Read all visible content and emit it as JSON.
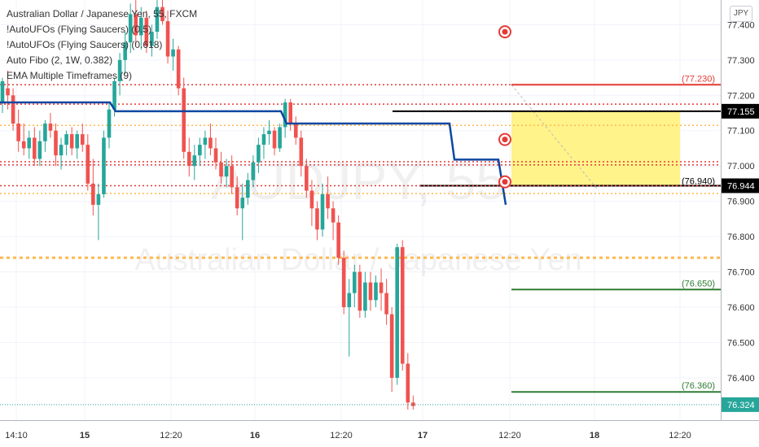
{
  "watermark": {
    "symbol": "AUDJPY, 55",
    "name": "Australian Dollar / Japanese Yen"
  },
  "legend": {
    "title": "Australian Dollar / Japanese Yen, 55, FXCM",
    "indicators": [
      "!AutoUFOs (Flying Saucers) (0.5)",
      "!AutoUFOs (Flying Saucers) (0.618)",
      "Auto Fibo (2, 1W, 0.382)",
      "EMA Multiple Timeframes (9)"
    ]
  },
  "currency_button": "JPY",
  "colors": {
    "up": "#26a69a",
    "down": "#ef5350",
    "ema": "#0d47a1",
    "dotted_red": "#e53935",
    "dotted_orange": "#ffb74d",
    "resistance_red": "#e53935",
    "target_green": "#2e7d32",
    "zone_yellow": "#fff176",
    "last_price": "#26a69a"
  },
  "chart_data": {
    "type": "candlestick",
    "symbol": "AUDJPY",
    "timeframe": "55",
    "source": "FXCM",
    "ylim": [
      76.28,
      77.47
    ],
    "y_ticks": [
      "77.400",
      "77.300",
      "77.200",
      "77.100",
      "77.000",
      "76.900",
      "76.800",
      "76.700",
      "76.600",
      "76.500",
      "76.400"
    ],
    "x_ticks": [
      "14:10",
      "15",
      "12:20",
      "16",
      "12:20",
      "17",
      "12:20",
      "18",
      "12:20"
    ],
    "price_labels": [
      {
        "text": "77.155",
        "value": 77.155,
        "style": "black"
      },
      {
        "text": "76.944",
        "value": 76.944,
        "style": "black"
      },
      {
        "text": "76.324",
        "value": 76.324,
        "style": "green"
      }
    ],
    "level_labels": [
      {
        "text": "(77.230)",
        "value": 77.23,
        "color": "red"
      },
      {
        "text": "(76.940)",
        "value": 76.94,
        "color": "black"
      },
      {
        "text": "(76.650)",
        "value": 76.65,
        "color": "green"
      },
      {
        "text": "(76.360)",
        "value": 76.36,
        "color": "green"
      }
    ],
    "horizontal_levels": [
      {
        "value": 77.23,
        "kind": "red-solid"
      },
      {
        "value": 77.155,
        "kind": "black-solid"
      },
      {
        "value": 76.944,
        "kind": "black-solid"
      },
      {
        "value": 76.65,
        "kind": "green-solid"
      },
      {
        "value": 76.36,
        "kind": "green-solid"
      },
      {
        "value": 77.23,
        "kind": "red-dotted"
      },
      {
        "value": 77.175,
        "kind": "red-dotted"
      },
      {
        "value": 77.012,
        "kind": "red-dotted"
      },
      {
        "value": 77.003,
        "kind": "red-dotted"
      },
      {
        "value": 76.944,
        "kind": "red-dotted"
      },
      {
        "value": 77.115,
        "kind": "orange-dotted"
      },
      {
        "value": 76.922,
        "kind": "orange-dotted"
      },
      {
        "value": 76.74,
        "kind": "orange-dotted"
      }
    ],
    "zone": {
      "from": 77.155,
      "to": 76.944
    },
    "markers": [
      77.38,
      77.075,
      76.955
    ],
    "candles": [
      [
        77.18,
        77.25,
        77.15,
        77.24
      ],
      [
        77.22,
        77.27,
        77.16,
        77.2
      ],
      [
        77.2,
        77.22,
        77.1,
        77.12
      ],
      [
        77.12,
        77.16,
        77.04,
        77.07
      ],
      [
        77.07,
        77.12,
        77.03,
        77.05
      ],
      [
        77.05,
        77.1,
        77.02,
        77.08
      ],
      [
        77.08,
        77.11,
        77.0,
        77.02
      ],
      [
        77.02,
        77.1,
        77.0,
        77.07
      ],
      [
        77.07,
        77.13,
        77.04,
        77.12
      ],
      [
        77.12,
        77.15,
        77.08,
        77.1
      ],
      [
        77.1,
        77.12,
        77.0,
        77.03
      ],
      [
        77.03,
        77.08,
        76.99,
        77.06
      ],
      [
        77.06,
        77.1,
        77.03,
        77.09
      ],
      [
        77.09,
        77.11,
        77.03,
        77.05
      ],
      [
        77.05,
        77.1,
        77.02,
        77.09
      ],
      [
        77.09,
        77.12,
        77.04,
        77.06
      ],
      [
        77.06,
        77.09,
        76.93,
        76.95
      ],
      [
        76.95,
        77.02,
        76.86,
        76.89
      ],
      [
        76.89,
        76.95,
        76.79,
        76.92
      ],
      [
        76.92,
        77.1,
        76.91,
        77.08
      ],
      [
        77.08,
        77.18,
        77.05,
        77.16
      ],
      [
        77.16,
        77.25,
        77.14,
        77.24
      ],
      [
        77.24,
        77.32,
        77.2,
        77.3
      ],
      [
        77.3,
        77.38,
        77.26,
        77.35
      ],
      [
        77.35,
        77.46,
        77.32,
        77.43
      ],
      [
        77.43,
        77.48,
        77.34,
        77.37
      ],
      [
        77.37,
        77.45,
        77.33,
        77.42
      ],
      [
        77.42,
        77.44,
        77.32,
        77.34
      ],
      [
        77.34,
        77.4,
        77.31,
        77.38
      ],
      [
        77.38,
        77.47,
        77.36,
        77.45
      ],
      [
        77.45,
        77.48,
        77.4,
        77.41
      ],
      [
        77.41,
        77.44,
        77.29,
        77.31
      ],
      [
        77.31,
        77.36,
        77.27,
        77.33
      ],
      [
        77.33,
        77.34,
        77.2,
        77.22
      ],
      [
        77.22,
        77.25,
        77.02,
        77.04
      ],
      [
        77.04,
        77.08,
        76.97,
        77.0
      ],
      [
        77.0,
        77.06,
        76.96,
        77.03
      ],
      [
        77.03,
        77.08,
        77.0,
        77.06
      ],
      [
        77.06,
        77.1,
        77.02,
        77.08
      ],
      [
        77.08,
        77.12,
        77.03,
        77.05
      ],
      [
        77.05,
        77.08,
        76.99,
        77.01
      ],
      [
        77.01,
        77.04,
        76.95,
        76.97
      ],
      [
        76.97,
        77.02,
        76.94,
        77.0
      ],
      [
        77.0,
        77.03,
        76.92,
        76.94
      ],
      [
        76.94,
        76.97,
        76.86,
        76.88
      ],
      [
        76.88,
        76.95,
        76.79,
        76.91
      ],
      [
        76.91,
        76.98,
        76.89,
        76.96
      ],
      [
        76.96,
        77.03,
        76.94,
        77.01
      ],
      [
        77.01,
        77.08,
        76.98,
        77.06
      ],
      [
        77.06,
        77.11,
        77.02,
        77.09
      ],
      [
        77.09,
        77.13,
        77.06,
        77.1
      ],
      [
        77.1,
        77.11,
        77.03,
        77.05
      ],
      [
        77.05,
        77.12,
        77.04,
        77.11
      ],
      [
        77.11,
        77.19,
        77.08,
        77.18
      ],
      [
        77.18,
        77.19,
        77.1,
        77.12
      ],
      [
        77.12,
        77.14,
        77.06,
        77.08
      ],
      [
        77.08,
        77.1,
        76.97,
        77.0
      ],
      [
        77.0,
        77.02,
        76.91,
        76.93
      ],
      [
        76.93,
        76.96,
        76.83,
        76.88
      ],
      [
        76.88,
        76.9,
        76.79,
        76.82
      ],
      [
        76.82,
        76.95,
        76.8,
        76.92
      ],
      [
        76.92,
        76.97,
        76.85,
        76.88
      ],
      [
        76.88,
        76.9,
        76.79,
        76.84
      ],
      [
        76.84,
        76.86,
        76.72,
        76.74
      ],
      [
        76.74,
        76.76,
        76.58,
        76.6
      ],
      [
        76.6,
        76.68,
        76.46,
        76.64
      ],
      [
        76.64,
        76.72,
        76.6,
        76.7
      ],
      [
        76.7,
        76.72,
        76.57,
        76.59
      ],
      [
        76.59,
        76.7,
        76.57,
        76.67
      ],
      [
        76.67,
        76.7,
        76.59,
        76.62
      ],
      [
        76.62,
        76.69,
        76.6,
        76.67
      ],
      [
        76.67,
        76.71,
        76.59,
        76.64
      ],
      [
        76.64,
        76.68,
        76.55,
        76.58
      ],
      [
        76.58,
        76.6,
        76.36,
        76.4
      ],
      [
        76.4,
        76.78,
        76.38,
        76.77
      ],
      [
        76.77,
        76.79,
        76.42,
        76.44
      ],
      [
        76.44,
        76.47,
        76.31,
        76.33
      ],
      [
        76.33,
        76.35,
        76.31,
        76.32
      ]
    ],
    "ema": [
      77.18,
      77.18,
      77.18,
      77.18,
      77.18,
      77.18,
      77.18,
      77.18,
      77.18,
      77.18,
      77.18,
      77.18,
      77.18,
      77.18,
      77.18,
      77.18,
      77.16,
      77.16,
      77.16,
      77.16,
      77.16,
      77.16,
      77.16,
      77.16,
      77.16,
      77.16,
      77.16,
      77.16,
      77.16,
      77.16,
      77.16,
      77.16,
      77.16,
      77.16,
      77.16,
      77.16,
      77.16,
      77.16,
      77.16,
      77.16,
      77.16,
      77.16,
      77.16,
      77.16,
      77.16,
      77.16,
      77.16,
      77.16,
      77.16,
      77.16,
      77.16,
      77.16,
      77.16,
      77.16,
      77.16,
      77.16,
      77.16,
      77.16,
      77.16,
      77.16,
      77.16,
      77.16,
      77.16,
      77.16
    ]
  }
}
